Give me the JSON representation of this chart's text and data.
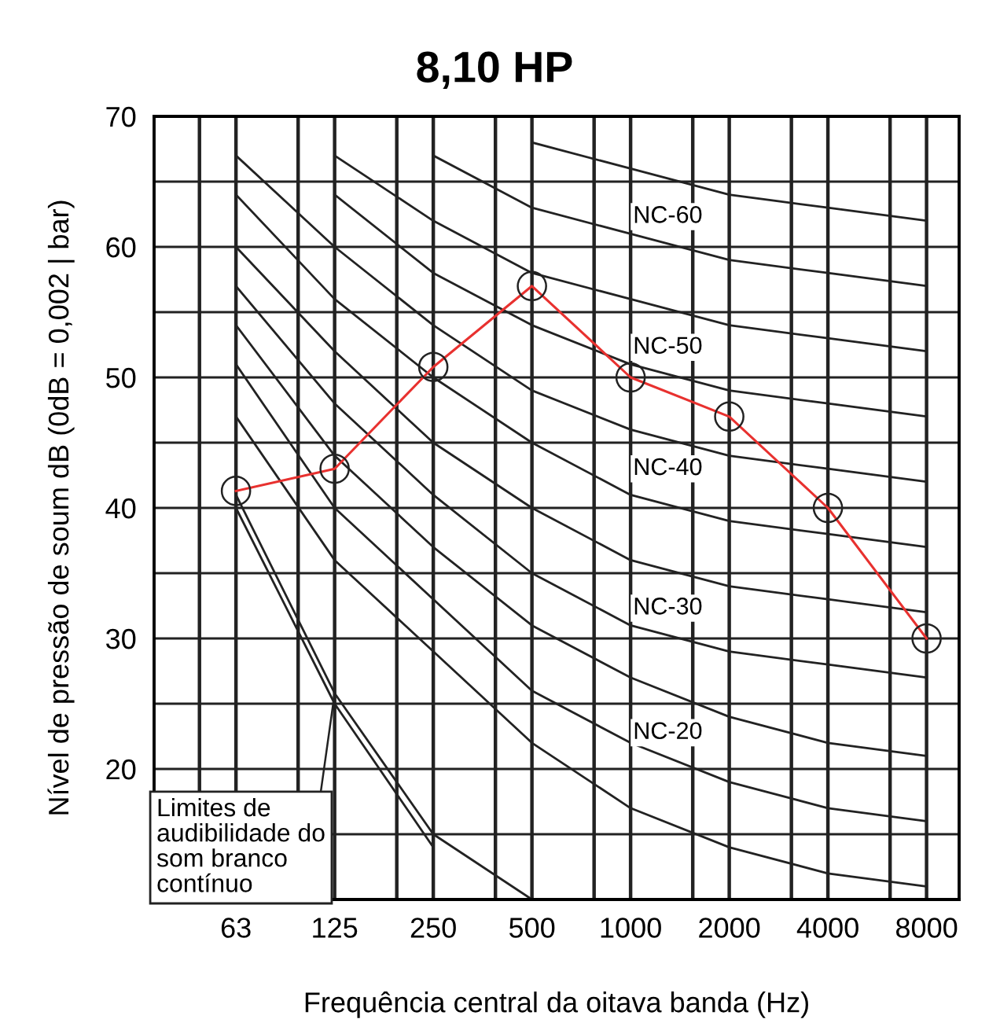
{
  "chart_data": {
    "type": "line",
    "title": "8,10 HP",
    "xlabel": "Frequência central da oitava banda (Hz)",
    "ylabel": "Nível de pressão de soum dB (0dB = 0,002 | bar)",
    "categories": [
      "63",
      "125",
      "250",
      "500",
      "1000",
      "2000",
      "4000",
      "8000"
    ],
    "series": [
      {
        "color": "#222222",
        "values": [
          47,
          36,
          29,
          22,
          17,
          14,
          12,
          11
        ]
      },
      {
        "color": "#222222",
        "values": [
          51,
          40,
          33,
          26,
          22,
          19,
          17,
          16
        ]
      },
      {
        "color": "#222222",
        "values": [
          54,
          44,
          37,
          31,
          27,
          24,
          22,
          21
        ]
      },
      {
        "color": "#222222",
        "values": [
          57,
          48,
          41,
          35,
          31,
          29,
          28,
          27
        ]
      },
      {
        "color": "#222222",
        "values": [
          60,
          52,
          45,
          40,
          36,
          34,
          33,
          32
        ]
      },
      {
        "color": "#222222",
        "values": [
          64,
          56,
          50,
          45,
          41,
          39,
          38,
          37
        ]
      },
      {
        "color": "#222222",
        "values": [
          67,
          60,
          54,
          49,
          46,
          44,
          43,
          42
        ]
      },
      {
        "color": "#222222",
        "values": [
          null,
          64,
          58,
          54,
          51,
          49,
          48,
          47
        ]
      },
      {
        "color": "#222222",
        "values": [
          null,
          67,
          62,
          58,
          56,
          54,
          53,
          52
        ]
      },
      {
        "color": "#222222",
        "values": [
          null,
          null,
          67,
          63,
          61,
          59,
          58,
          57
        ]
      },
      {
        "color": "#222222",
        "values": [
          null,
          null,
          null,
          68,
          66,
          64,
          63,
          62
        ]
      },
      {
        "color": "#222222",
        "values": [
          41,
          25.8,
          15,
          10,
          null,
          null,
          null,
          null
        ]
      },
      {
        "color": "#222222",
        "values": [
          40,
          25,
          14,
          null,
          null,
          null,
          null,
          null
        ]
      },
      {
        "color": "#e8312f",
        "marker": "circle",
        "values": [
          41.3,
          43,
          50.8,
          57,
          50,
          47,
          40,
          30
        ]
      }
    ],
    "ylim": [
      10,
      70
    ],
    "yticks": [
      {
        "value": 10,
        "label": null
      },
      {
        "value": 15,
        "label": null
      },
      20,
      {
        "value": 25,
        "label": null
      },
      30,
      {
        "value": 35,
        "label": null
      },
      40,
      {
        "value": 45,
        "label": null
      },
      50,
      {
        "value": 55,
        "label": null
      },
      60,
      {
        "value": 65,
        "label": null
      },
      70
    ],
    "grid": true,
    "legend": false,
    "line_style": "solid",
    "annotations": [
      "NC-60",
      "NC-50",
      "NC-40",
      "NC-30",
      "NC-20",
      {
        "text": "Limites de\naudibilidade do\nsom branco\ncontínuo",
        "x": "125",
        "y": 25.8
      }
    ]
  }
}
